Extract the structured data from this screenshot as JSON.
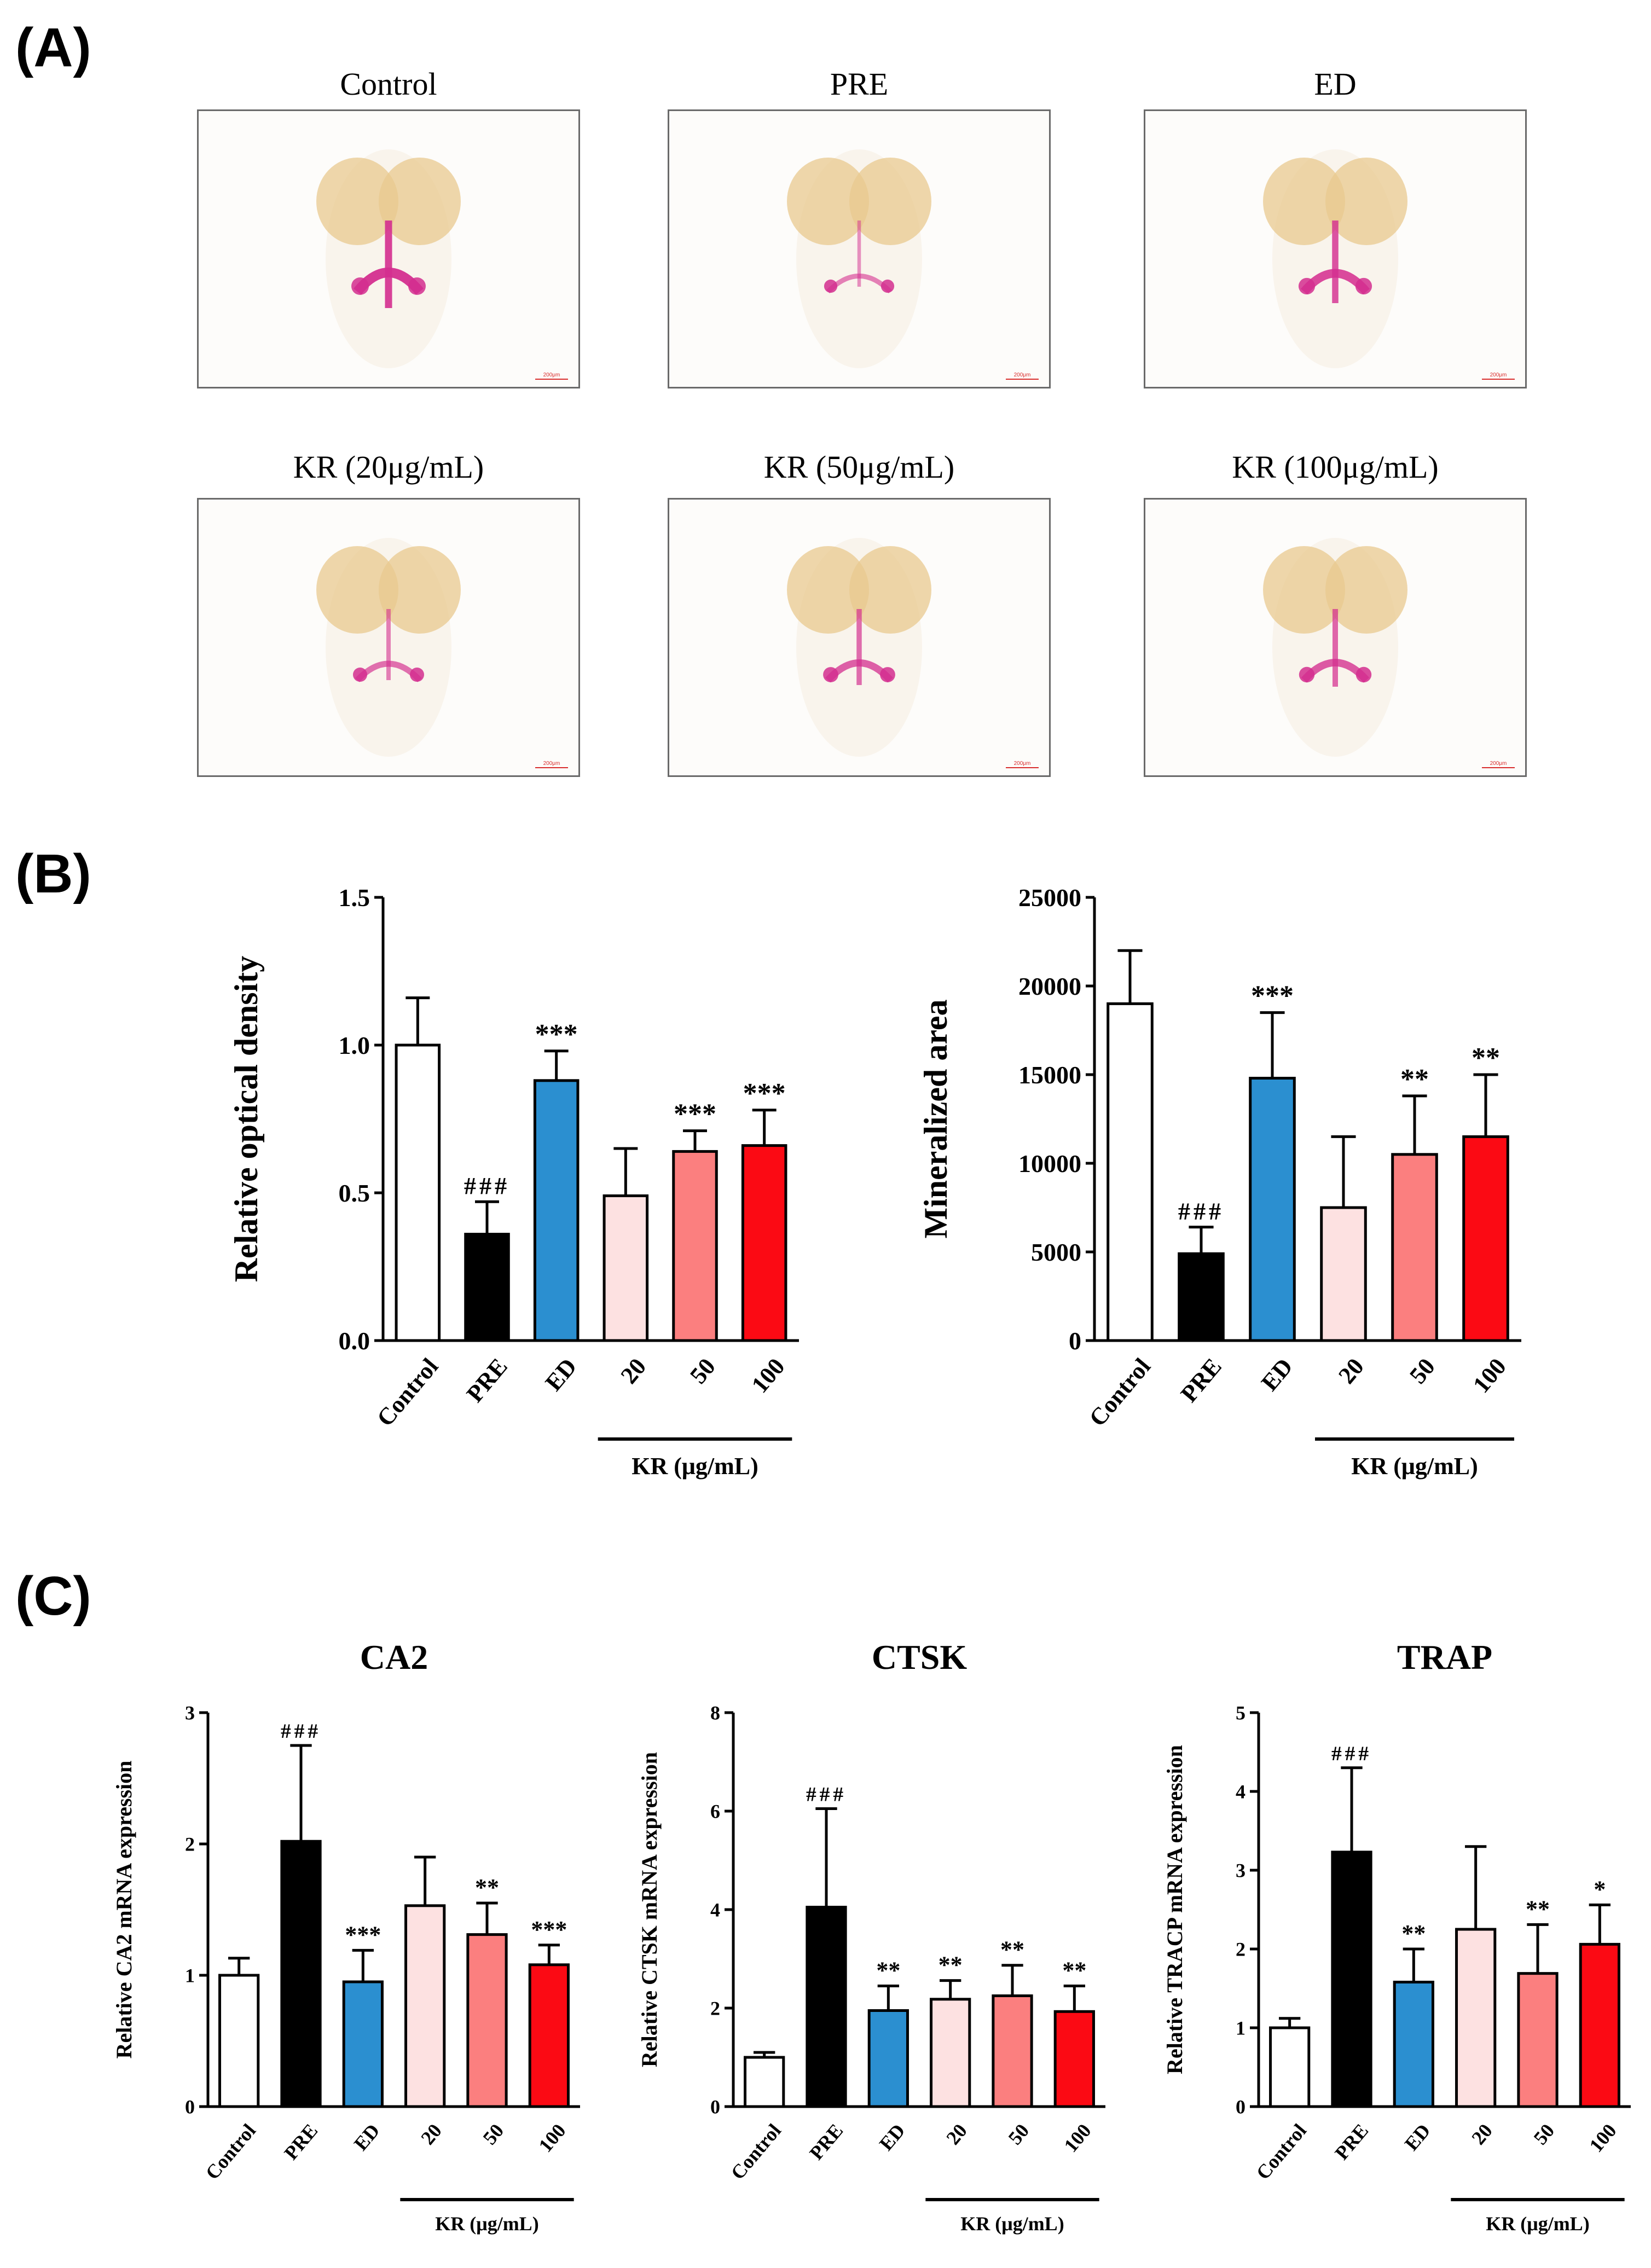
{
  "panels": {
    "a_label": "(A)",
    "b_label": "(B)",
    "c_label": "(C)"
  },
  "photos": [
    {
      "title": "Control",
      "scale_bar": "200μm",
      "stain": 1.0
    },
    {
      "title": "PRE",
      "scale_bar": "200μm",
      "stain": 0.35
    },
    {
      "title": "ED",
      "scale_bar": "200μm",
      "stain": 0.85
    },
    {
      "title": "KR (20μg/mL)",
      "scale_bar": "200μm",
      "stain": 0.5
    },
    {
      "title": "KR (50μg/mL)",
      "scale_bar": "200μm",
      "stain": 0.65
    },
    {
      "title": "KR (100μg/mL)",
      "scale_bar": "200μm",
      "stain": 0.7
    }
  ],
  "colors": {
    "Control": "#ffffff",
    "PRE": "#000000",
    "ED": "#2b8fd0",
    "KR20": "#fde1e1",
    "KR50": "#fb7f7f",
    "KR100": "#fb0a14",
    "stain": "#d42e8f",
    "eye": "#e8c98f"
  },
  "chart_data": [
    {
      "type": "bar",
      "panel": "B",
      "title": "",
      "ylabel": "Relative optical density",
      "xlabel": "",
      "ylim": [
        0,
        1.5
      ],
      "yticks": [
        "0.0",
        "0.5",
        "1.0",
        "1.5"
      ],
      "ytick_values": [
        0,
        0.5,
        1.0,
        1.5
      ],
      "categories": [
        "Control",
        "PRE",
        "ED",
        "20",
        "50",
        "100"
      ],
      "values": [
        1.0,
        0.36,
        0.88,
        0.49,
        0.64,
        0.66
      ],
      "errors": [
        0.16,
        0.11,
        0.1,
        0.16,
        0.07,
        0.12
      ],
      "annotations": [
        "",
        "###",
        "***",
        "",
        "***",
        "***"
      ],
      "group_label": "KR (μg/mL)"
    },
    {
      "type": "bar",
      "panel": "B",
      "title": "",
      "ylabel": "Mineralized area",
      "xlabel": "",
      "ylim": [
        0,
        25000
      ],
      "yticks": [
        "0",
        "5000",
        "10000",
        "15000",
        "20000",
        "25000"
      ],
      "ytick_values": [
        0,
        5000,
        10000,
        15000,
        20000,
        25000
      ],
      "categories": [
        "Control",
        "PRE",
        "ED",
        "20",
        "50",
        "100"
      ],
      "values": [
        19000,
        4900,
        14800,
        7500,
        10500,
        11500
      ],
      "errors": [
        3000,
        1500,
        3700,
        4000,
        3300,
        3500
      ],
      "annotations": [
        "",
        "###",
        "***",
        "",
        "**",
        "**"
      ],
      "group_label": "KR (μg/mL)"
    },
    {
      "type": "bar",
      "panel": "C",
      "title": "CA2",
      "ylabel": "Relative CA2 mRNA expression",
      "xlabel": "",
      "ylim": [
        0,
        3
      ],
      "yticks": [
        "0",
        "1",
        "2",
        "3"
      ],
      "ytick_values": [
        0,
        1,
        2,
        3
      ],
      "categories": [
        "Control",
        "PRE",
        "ED",
        "20",
        "50",
        "100"
      ],
      "values": [
        1.0,
        2.02,
        0.95,
        1.53,
        1.31,
        1.08
      ],
      "errors": [
        0.13,
        0.73,
        0.24,
        0.37,
        0.24,
        0.15
      ],
      "annotations": [
        "",
        "###",
        "***",
        "",
        "**",
        "***"
      ],
      "group_label": "KR (μg/mL)"
    },
    {
      "type": "bar",
      "panel": "C",
      "title": "CTSK",
      "ylabel": "Relative CTSK mRNA expression",
      "xlabel": "",
      "ylim": [
        0,
        8
      ],
      "yticks": [
        "0",
        "2",
        "4",
        "6",
        "8"
      ],
      "ytick_values": [
        0,
        2,
        4,
        6,
        8
      ],
      "categories": [
        "Control",
        "PRE",
        "ED",
        "20",
        "50",
        "100"
      ],
      "values": [
        1.0,
        4.05,
        1.95,
        2.18,
        2.25,
        1.93
      ],
      "errors": [
        0.1,
        2.0,
        0.5,
        0.38,
        0.62,
        0.52
      ],
      "annotations": [
        "",
        "###",
        "**",
        "**",
        "**",
        "**"
      ],
      "group_label": "KR (μg/mL)"
    },
    {
      "type": "bar",
      "panel": "C",
      "title": "TRAP",
      "ylabel": "Relative TRACP mRNA expression",
      "xlabel": "",
      "ylim": [
        0,
        5
      ],
      "yticks": [
        "0",
        "1",
        "2",
        "3",
        "4",
        "5"
      ],
      "ytick_values": [
        0,
        1,
        2,
        3,
        4,
        5
      ],
      "categories": [
        "Control",
        "PRE",
        "ED",
        "20",
        "50",
        "100"
      ],
      "values": [
        1.0,
        3.23,
        1.58,
        2.25,
        1.69,
        2.06
      ],
      "errors": [
        0.12,
        1.07,
        0.42,
        1.05,
        0.62,
        0.5
      ],
      "annotations": [
        "",
        "###",
        "**",
        "",
        "**",
        "*"
      ],
      "group_label": "KR (μg/mL)"
    }
  ]
}
